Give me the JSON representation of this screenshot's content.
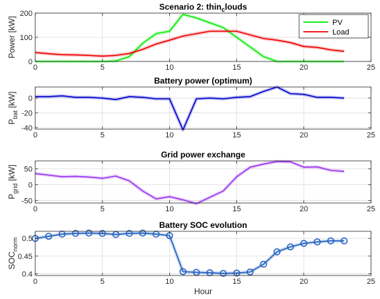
{
  "chart_data": [
    {
      "type": "line",
      "title": "Scenario 2: thin",
      "title_subscript": "c",
      "title_suffix": "louds",
      "ylabel": "Power [kW]",
      "xlim": [
        0,
        25
      ],
      "ylim": [
        0,
        200
      ],
      "xticks": [
        0,
        5,
        10,
        15,
        20,
        25
      ],
      "yticks": [
        0,
        100,
        200
      ],
      "grid": true,
      "legend": "top-right",
      "x": [
        0,
        1,
        2,
        3,
        4,
        5,
        6,
        7,
        8,
        9,
        10,
        11,
        12,
        13,
        14,
        15,
        16,
        17,
        18,
        19,
        20,
        21,
        22,
        23
      ],
      "series": [
        {
          "name": "PV",
          "color": "#00ee00",
          "values": [
            0,
            0,
            0,
            0,
            0,
            0,
            2,
            20,
            75,
            115,
            125,
            195,
            180,
            160,
            140,
            100,
            60,
            20,
            0,
            0,
            0,
            0,
            0,
            0
          ]
        },
        {
          "name": "Load",
          "color": "#ee0000",
          "values": [
            37,
            32,
            28,
            27,
            25,
            22,
            25,
            33,
            50,
            72,
            88,
            105,
            115,
            125,
            125,
            125,
            110,
            95,
            88,
            78,
            62,
            58,
            48,
            42
          ]
        }
      ]
    },
    {
      "type": "line",
      "title": "Battery power (optimum)",
      "ylabel_main": "P",
      "ylabel_sub": "bat",
      "ylabel_unit": "[kW]",
      "xlim": [
        0,
        25
      ],
      "ylim": [
        -42,
        15
      ],
      "xticks": [
        0,
        5,
        10,
        15,
        20,
        25
      ],
      "yticks": [
        -40,
        -20,
        0
      ],
      "grid": true,
      "x": [
        0,
        1,
        2,
        3,
        4,
        5,
        6,
        7,
        8,
        9,
        10,
        11,
        12,
        13,
        14,
        15,
        16,
        17,
        18,
        19,
        20,
        21,
        22,
        23
      ],
      "series": [
        {
          "color": "#0000cc",
          "values": [
            2,
            2,
            3,
            1,
            1,
            0,
            -2,
            2,
            1,
            -1,
            -1,
            -43,
            -1,
            0,
            -1,
            1,
            2,
            9,
            15,
            6,
            5,
            1,
            1,
            0
          ]
        }
      ]
    },
    {
      "type": "line",
      "title": "Grid power exchange",
      "ylabel_main": "P",
      "ylabel_sub": "grid",
      "ylabel_unit": "[kW]",
      "xlim": [
        0,
        25
      ],
      "ylim": [
        -58,
        75
      ],
      "xticks": [
        0,
        5,
        10,
        15,
        20,
        25
      ],
      "yticks": [
        -50,
        0,
        50
      ],
      "grid": true,
      "x": [
        0,
        1,
        2,
        3,
        4,
        5,
        6,
        7,
        8,
        9,
        10,
        11,
        12,
        13,
        14,
        15,
        16,
        17,
        18,
        19,
        20,
        21,
        22,
        23
      ],
      "series": [
        {
          "color": "#9933ee",
          "values": [
            35,
            30,
            25,
            26,
            24,
            20,
            27,
            12,
            -20,
            -45,
            -38,
            -48,
            -60,
            -40,
            -20,
            25,
            55,
            65,
            73,
            72,
            55,
            56,
            45,
            42
          ]
        }
      ]
    },
    {
      "type": "line",
      "title": "Battery SOC evolution",
      "ylabel_main": "SOC",
      "ylabel_sub": "norm",
      "xlabel": "Hour",
      "xlim": [
        0,
        25
      ],
      "ylim": [
        0.395,
        0.52
      ],
      "xticks": [
        0,
        5,
        10,
        15,
        20,
        25
      ],
      "yticks": [
        0.4,
        0.45,
        0.5
      ],
      "ytick_labels": [
        "0.4",
        "0.45",
        "0.5"
      ],
      "grid": true,
      "x": [
        0,
        1,
        2,
        3,
        4,
        5,
        6,
        7,
        8,
        9,
        10,
        11,
        12,
        13,
        14,
        15,
        16,
        17,
        18,
        19,
        20,
        21,
        22,
        23
      ],
      "series": [
        {
          "color": "#1f5fbf",
          "marker": "circle",
          "values": [
            0.5,
            0.506,
            0.512,
            0.514,
            0.515,
            0.514,
            0.511,
            0.514,
            0.515,
            0.512,
            0.508,
            0.406,
            0.404,
            0.403,
            0.401,
            0.402,
            0.405,
            0.427,
            0.462,
            0.476,
            0.486,
            0.49,
            0.493,
            0.493
          ]
        }
      ]
    }
  ]
}
